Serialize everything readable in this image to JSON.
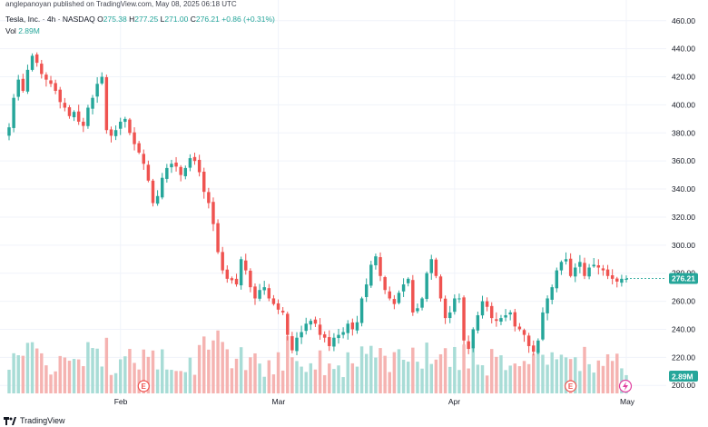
{
  "header": {
    "published": "anglepanoyan published on TradingView.com, May 08, 2025 06:18 UTC",
    "symbol": "Tesla, Inc. · 4h · NASDAQ",
    "o_label": "O",
    "o_val": "275.38",
    "h_label": "H",
    "h_val": "277.25",
    "l_label": "L",
    "l_val": "271.00",
    "c_label": "C",
    "c_val": "276.21",
    "change": "+0.86 (+0.31%)",
    "vol_label": "Vol",
    "vol_val": "2.89M"
  },
  "footer": {
    "brand": "TradingView"
  },
  "colors": {
    "up": "#26a69a",
    "down": "#ef5350",
    "up_vol": "#a8dcd6",
    "down_vol": "#f5b3b1",
    "grid": "#f0f3fa",
    "axis_text": "#131722"
  },
  "chart_data": {
    "type": "candlestick",
    "y_ticks": [
      200,
      220,
      240,
      260,
      280,
      300,
      320,
      340,
      360,
      380,
      400,
      420,
      440,
      460
    ],
    "y_tick_labels": [
      "200.00",
      "220.00",
      "240.00",
      "260.00",
      "280.00",
      "300.00",
      "320.00",
      "340.00",
      "360.00",
      "380.00",
      "400.00",
      "420.00",
      "440.00",
      "460.00"
    ],
    "ylim": [
      193,
      467
    ],
    "x_ticks": [
      {
        "label": "Feb",
        "index": 24
      },
      {
        "label": "Mar",
        "index": 58
      },
      {
        "label": "Apr",
        "index": 96
      },
      {
        "label": "May",
        "index": 133
      }
    ],
    "last_price": 276.21,
    "last_price_label": "276.21",
    "last_volume_label": "2.89M",
    "close": [
      384,
      405,
      418,
      410,
      425,
      435,
      430,
      422,
      418,
      415,
      410,
      402,
      398,
      392,
      395,
      388,
      385,
      398,
      405,
      415,
      420,
      382,
      378,
      382,
      388,
      390,
      380,
      372,
      366,
      358,
      346,
      330,
      335,
      348,
      355,
      358,
      356,
      350,
      355,
      362,
      360,
      352,
      338,
      330,
      315,
      295,
      282,
      276,
      275,
      272,
      290,
      282,
      270,
      262,
      268,
      270,
      262,
      258,
      254,
      252,
      236,
      225,
      234,
      238,
      244,
      246,
      244,
      236,
      234,
      228,
      234,
      236,
      238,
      244,
      240,
      245,
      262,
      272,
      286,
      292,
      278,
      268,
      262,
      258,
      266,
      272,
      276,
      252,
      255,
      262,
      280,
      290,
      278,
      262,
      248,
      252,
      262,
      262,
      232,
      226,
      240,
      250,
      260,
      256,
      248,
      246,
      248,
      250,
      252,
      242,
      240,
      236,
      228,
      224,
      232,
      252,
      262,
      270,
      282,
      288,
      290,
      278,
      284,
      288,
      278,
      284,
      286,
      284,
      282,
      278,
      276,
      274,
      276,
      276
    ]
  }
}
